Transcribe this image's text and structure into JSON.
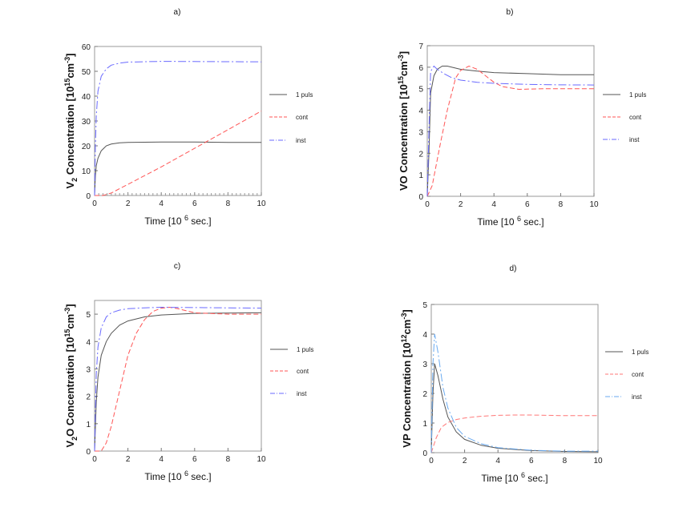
{
  "chart_data": [
    {
      "panel": "a)",
      "type": "line",
      "ylabel": {
        "main": "V",
        "sub": "2",
        "rest": " Concentration [10",
        "sup": "15",
        "unit": "cm",
        "unitsup": "-3",
        "close": "]"
      },
      "xlabel": {
        "main": "Time [10",
        "sup": "6",
        "rest": " sec.]"
      },
      "xlim": [
        0,
        10
      ],
      "ylim": [
        0,
        60
      ],
      "xticks": [
        0,
        2,
        4,
        6,
        8,
        10
      ],
      "yticks": [
        0,
        10,
        20,
        30,
        40,
        50,
        60
      ],
      "grid": false,
      "legend": "right",
      "series": [
        {
          "name": "1 puls",
          "color": "#555555",
          "style": "solid",
          "x": [
            0,
            0.05,
            0.1,
            0.2,
            0.4,
            0.7,
            1,
            1.5,
            2,
            4,
            6,
            8,
            10
          ],
          "y": [
            0,
            8,
            12,
            15,
            18,
            20,
            20.7,
            21.2,
            21.4,
            21.5,
            21.5,
            21.4,
            21.4
          ]
        },
        {
          "name": "cont",
          "color": "#ff5555",
          "style": "dashed",
          "x": [
            0,
            0.5,
            1,
            2,
            4,
            6,
            8,
            10
          ],
          "y": [
            0,
            0,
            1,
            4.5,
            11.5,
            19,
            26.5,
            34
          ]
        },
        {
          "name": "inst",
          "color": "#6a6aff",
          "style": "dashdot",
          "x": [
            0,
            0.05,
            0.1,
            0.2,
            0.4,
            0.7,
            1,
            1.5,
            2,
            4,
            10
          ],
          "y": [
            0,
            20,
            32,
            42,
            48,
            51,
            52.5,
            53.3,
            53.7,
            54,
            53.8
          ]
        }
      ]
    },
    {
      "panel": "b)",
      "type": "line",
      "ylabel": {
        "main": "VO",
        "sub": "",
        "rest": " Concentration [10",
        "sup": "15",
        "unit": "cm",
        "unitsup": "-3",
        "close": "]"
      },
      "xlabel": {
        "main": "Time [10",
        "sup": "6",
        "rest": " sec.]"
      },
      "xlim": [
        0,
        10
      ],
      "ylim": [
        0,
        7
      ],
      "xticks": [
        0,
        2,
        4,
        6,
        8,
        10
      ],
      "yticks": [
        0,
        1,
        2,
        3,
        4,
        5,
        6,
        7
      ],
      "grid": false,
      "legend": "right",
      "series": [
        {
          "name": "1 puls",
          "color": "#555555",
          "style": "solid",
          "x": [
            0,
            0.1,
            0.2,
            0.4,
            0.6,
            0.9,
            1.2,
            2,
            3,
            4,
            6,
            8,
            10
          ],
          "y": [
            0,
            2,
            4.8,
            5.6,
            5.9,
            6.05,
            6.05,
            5.9,
            5.82,
            5.75,
            5.7,
            5.65,
            5.65
          ]
        },
        {
          "name": "cont",
          "color": "#ff5555",
          "style": "dashed",
          "x": [
            0,
            0.3,
            0.8,
            1.2,
            1.7,
            2,
            2.5,
            3,
            3.5,
            4,
            4.5,
            5.5,
            7,
            10
          ],
          "y": [
            0,
            0.5,
            2.5,
            4,
            5.5,
            5.85,
            6.05,
            5.9,
            5.6,
            5.3,
            5.1,
            4.97,
            5,
            5
          ]
        },
        {
          "name": "inst",
          "color": "#6a6aff",
          "style": "dashdot",
          "x": [
            0,
            0.1,
            0.2,
            0.4,
            0.6,
            1,
            1.5,
            2,
            3,
            4,
            6,
            8,
            10
          ],
          "y": [
            0,
            3,
            5.8,
            6.05,
            5.9,
            5.7,
            5.5,
            5.4,
            5.3,
            5.25,
            5.2,
            5.18,
            5.17
          ]
        }
      ]
    },
    {
      "panel": "c)",
      "type": "line",
      "ylabel": {
        "main": "V",
        "sub": "2",
        "rest": "O Concentration [10",
        "sup": "15",
        "unit": "cm",
        "unitsup": "-3",
        "close": "]"
      },
      "xlabel": {
        "main": "Time [10",
        "sup": "6",
        "rest": " sec.]"
      },
      "xlim": [
        0,
        10
      ],
      "ylim": [
        0,
        5.5
      ],
      "xticks": [
        0,
        2,
        4,
        6,
        8,
        10
      ],
      "yticks": [
        0,
        1,
        2,
        3,
        4,
        5
      ],
      "grid": false,
      "legend": "right",
      "series": [
        {
          "name": "1 puls",
          "color": "#555555",
          "style": "solid",
          "x": [
            0,
            0.1,
            0.2,
            0.4,
            0.7,
            1,
            1.5,
            2,
            3,
            4,
            6,
            10
          ],
          "y": [
            0,
            1.8,
            2.7,
            3.5,
            4.0,
            4.3,
            4.6,
            4.75,
            4.9,
            4.97,
            5.03,
            5.05
          ]
        },
        {
          "name": "cont",
          "color": "#ff5555",
          "style": "dashed",
          "x": [
            0,
            0.4,
            0.7,
            1,
            1.5,
            2,
            2.5,
            3,
            3.5,
            4,
            4.5,
            5,
            6,
            8,
            10
          ],
          "y": [
            0,
            0,
            0.3,
            0.9,
            2.2,
            3.5,
            4.3,
            4.8,
            5.1,
            5.22,
            5.25,
            5.2,
            5.05,
            5,
            5
          ]
        },
        {
          "name": "inst",
          "color": "#6a6aff",
          "style": "dashdot",
          "x": [
            0,
            0.05,
            0.1,
            0.2,
            0.4,
            0.7,
            1,
            1.5,
            2,
            3,
            4,
            10
          ],
          "y": [
            0,
            1.5,
            2.8,
            3.8,
            4.5,
            4.9,
            5.05,
            5.15,
            5.2,
            5.23,
            5.25,
            5.22
          ]
        }
      ]
    },
    {
      "panel": "d)",
      "type": "line",
      "ylabel": {
        "main": "VP",
        "sub": "",
        "rest": " Concentration [10",
        "sup": "12",
        "unit": "cm",
        "unitsup": "-3",
        "close": "]"
      },
      "xlabel": {
        "main": "Time [10",
        "sup": "6",
        "rest": " sec.]"
      },
      "xlim": [
        0,
        10
      ],
      "ylim": [
        0,
        5
      ],
      "xticks": [
        0,
        2,
        4,
        6,
        8,
        10
      ],
      "yticks": [
        0,
        1,
        2,
        3,
        4,
        5
      ],
      "grid": false,
      "legend": "right",
      "series": [
        {
          "name": "1 puls",
          "color": "#555555",
          "style": "solid",
          "x": [
            0,
            0.1,
            0.2,
            0.4,
            0.7,
            1,
            1.5,
            2,
            3,
            4,
            6,
            8,
            10
          ],
          "y": [
            0,
            2,
            3,
            2.6,
            1.8,
            1.2,
            0.7,
            0.45,
            0.25,
            0.15,
            0.07,
            0.04,
            0.03
          ]
        },
        {
          "name": "cont",
          "color": "#ff7777",
          "style": "dashed",
          "x": [
            0,
            0.3,
            0.6,
            1,
            1.5,
            2,
            3,
            4,
            5,
            6,
            8,
            10
          ],
          "y": [
            0,
            0.5,
            0.85,
            1.02,
            1.12,
            1.17,
            1.23,
            1.26,
            1.27,
            1.27,
            1.25,
            1.25
          ]
        },
        {
          "name": "inst",
          "color": "#6aaaf0",
          "style": "dashdot",
          "x": [
            0,
            0.1,
            0.2,
            0.4,
            0.7,
            1,
            1.5,
            2,
            3,
            4,
            6,
            8,
            10
          ],
          "y": [
            0,
            3,
            4,
            3.4,
            2.2,
            1.5,
            0.85,
            0.55,
            0.3,
            0.17,
            0.08,
            0.05,
            0.05
          ]
        }
      ]
    }
  ]
}
